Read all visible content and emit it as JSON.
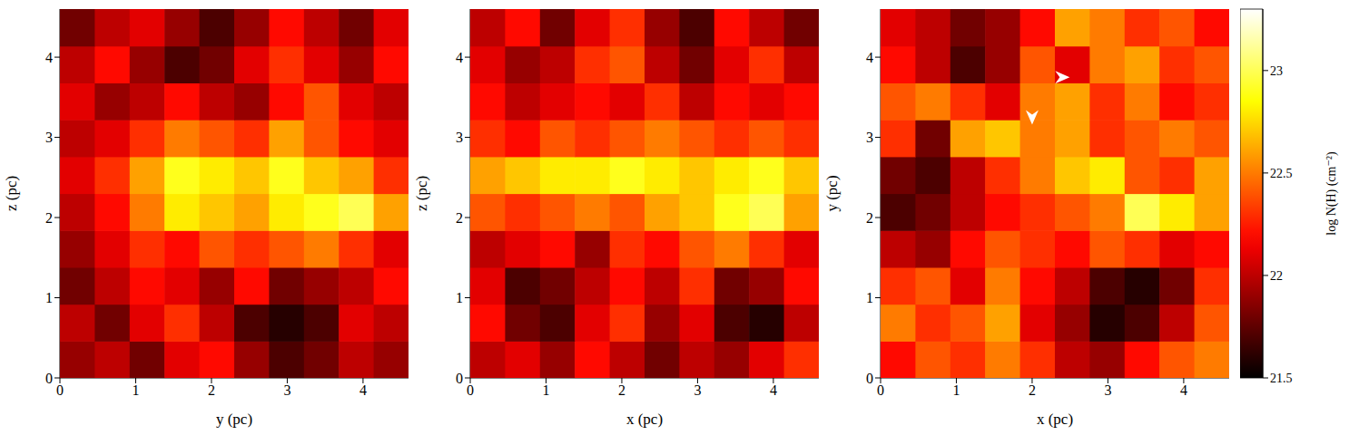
{
  "chart_data": [
    {
      "type": "heatmap",
      "xlabel": "y (pc)",
      "ylabel": "z (pc)",
      "xlim": [
        0,
        4.6
      ],
      "ylim": [
        0,
        4.6
      ],
      "xticks": [
        0,
        1,
        2,
        3,
        4
      ],
      "yticks": [
        0,
        1,
        2,
        3,
        4
      ],
      "x_edges": [
        0,
        0.46,
        0.92,
        1.38,
        1.84,
        2.3,
        2.76,
        3.22,
        3.68,
        4.14,
        4.6
      ],
      "y_edges": [
        0,
        0.46,
        0.92,
        1.38,
        1.84,
        2.3,
        2.76,
        3.22,
        3.68,
        4.14,
        4.6
      ],
      "cells": [
        [
          21.9,
          22.0,
          21.8,
          22.1,
          22.2,
          21.9,
          21.7,
          21.8,
          22.0,
          21.9
        ],
        [
          22.0,
          21.8,
          22.1,
          22.3,
          22.0,
          21.7,
          21.6,
          21.7,
          22.1,
          22.0
        ],
        [
          21.8,
          22.0,
          22.2,
          22.1,
          21.9,
          22.2,
          21.8,
          21.9,
          22.0,
          22.2
        ],
        [
          21.9,
          22.1,
          22.3,
          22.2,
          22.4,
          22.3,
          22.4,
          22.5,
          22.3,
          22.1
        ],
        [
          22.0,
          22.2,
          22.5,
          22.8,
          22.7,
          22.6,
          22.8,
          22.9,
          23.0,
          22.6
        ],
        [
          22.1,
          22.3,
          22.6,
          22.9,
          22.8,
          22.7,
          22.9,
          22.7,
          22.6,
          22.3
        ],
        [
          22.0,
          22.1,
          22.3,
          22.5,
          22.4,
          22.3,
          22.6,
          22.4,
          22.2,
          22.1
        ],
        [
          22.1,
          21.9,
          22.0,
          22.2,
          22.0,
          21.9,
          22.2,
          22.4,
          22.1,
          22.0
        ],
        [
          22.0,
          22.2,
          21.9,
          21.7,
          21.8,
          22.1,
          22.3,
          22.1,
          21.9,
          22.2
        ],
        [
          21.8,
          22.0,
          22.1,
          21.9,
          21.7,
          21.9,
          22.2,
          22.0,
          21.8,
          22.1
        ]
      ]
    },
    {
      "type": "heatmap",
      "xlabel": "x (pc)",
      "ylabel": "z (pc)",
      "xlim": [
        0,
        4.6
      ],
      "ylim": [
        0,
        4.6
      ],
      "xticks": [
        0,
        1,
        2,
        3,
        4
      ],
      "yticks": [
        0,
        1,
        2,
        3,
        4
      ],
      "x_edges": [
        0,
        0.46,
        0.92,
        1.38,
        1.84,
        2.3,
        2.76,
        3.22,
        3.68,
        4.14,
        4.6
      ],
      "y_edges": [
        0,
        0.46,
        0.92,
        1.38,
        1.84,
        2.3,
        2.76,
        3.22,
        3.68,
        4.14,
        4.6
      ],
      "cells": [
        [
          22.0,
          22.1,
          21.9,
          22.2,
          22.0,
          21.8,
          22.0,
          21.9,
          22.1,
          22.3
        ],
        [
          22.2,
          21.8,
          21.7,
          22.1,
          22.3,
          21.9,
          22.1,
          21.7,
          21.6,
          22.0
        ],
        [
          22.1,
          21.7,
          21.8,
          22.0,
          22.2,
          22.0,
          22.3,
          21.8,
          21.9,
          22.2
        ],
        [
          22.0,
          22.1,
          22.2,
          21.9,
          22.3,
          22.2,
          22.4,
          22.5,
          22.3,
          22.1
        ],
        [
          22.4,
          22.3,
          22.4,
          22.5,
          22.4,
          22.6,
          22.7,
          22.9,
          23.0,
          22.6
        ],
        [
          22.6,
          22.7,
          22.8,
          22.8,
          22.9,
          22.8,
          22.7,
          22.8,
          22.9,
          22.7
        ],
        [
          22.3,
          22.2,
          22.4,
          22.3,
          22.4,
          22.5,
          22.4,
          22.3,
          22.4,
          22.3
        ],
        [
          22.2,
          22.0,
          22.1,
          22.2,
          22.1,
          22.3,
          22.0,
          22.2,
          22.1,
          22.2
        ],
        [
          22.1,
          21.9,
          22.0,
          22.3,
          22.4,
          22.0,
          21.8,
          22.1,
          22.3,
          22.0
        ],
        [
          22.0,
          22.2,
          21.8,
          22.1,
          22.3,
          21.9,
          21.7,
          22.2,
          22.0,
          21.8
        ]
      ]
    },
    {
      "type": "heatmap",
      "xlabel": "x (pc)",
      "ylabel": "y (pc)",
      "xlim": [
        0,
        4.6
      ],
      "ylim": [
        0,
        4.6
      ],
      "xticks": [
        0,
        1,
        2,
        3,
        4
      ],
      "yticks": [
        0,
        1,
        2,
        3,
        4
      ],
      "x_edges": [
        0,
        0.46,
        0.92,
        1.38,
        1.84,
        2.3,
        2.76,
        3.22,
        3.68,
        4.14,
        4.6
      ],
      "y_edges": [
        0,
        0.46,
        0.92,
        1.38,
        1.84,
        2.3,
        2.76,
        3.22,
        3.68,
        4.14,
        4.6
      ],
      "cells": [
        [
          22.2,
          22.4,
          22.3,
          22.5,
          22.3,
          22.0,
          21.9,
          22.2,
          22.4,
          22.5
        ],
        [
          22.5,
          22.3,
          22.4,
          22.6,
          22.1,
          21.9,
          21.6,
          21.7,
          22.0,
          22.4
        ],
        [
          22.3,
          22.4,
          22.1,
          22.5,
          22.2,
          22.0,
          21.7,
          21.6,
          21.8,
          22.3
        ],
        [
          22.0,
          21.9,
          22.2,
          22.4,
          22.3,
          22.2,
          22.4,
          22.3,
          22.1,
          22.2
        ],
        [
          21.7,
          21.8,
          22.0,
          22.2,
          22.3,
          22.4,
          22.5,
          23.0,
          22.8,
          22.6
        ],
        [
          21.8,
          21.7,
          22.0,
          22.3,
          22.5,
          22.7,
          22.8,
          22.4,
          22.3,
          22.6
        ],
        [
          22.3,
          21.8,
          22.6,
          22.7,
          22.5,
          22.6,
          22.3,
          22.4,
          22.5,
          22.4
        ],
        [
          22.4,
          22.5,
          22.3,
          22.1,
          22.5,
          22.6,
          22.3,
          22.5,
          22.2,
          22.3
        ],
        [
          22.2,
          22.0,
          21.7,
          21.9,
          22.4,
          22.1,
          22.5,
          22.6,
          22.3,
          22.4
        ],
        [
          22.1,
          22.0,
          21.8,
          21.9,
          22.2,
          22.6,
          22.5,
          22.3,
          22.4,
          22.2
        ]
      ],
      "arrows": [
        {
          "x": 2.4,
          "y": 3.75,
          "direction": "right"
        },
        {
          "x": 2.0,
          "y": 3.25,
          "direction": "down"
        }
      ],
      "colorbar": {
        "label": "log N(H) (cm⁻²)",
        "range": [
          21.5,
          23.3
        ],
        "ticks": [
          21.5,
          22,
          22.5,
          23
        ]
      }
    }
  ]
}
